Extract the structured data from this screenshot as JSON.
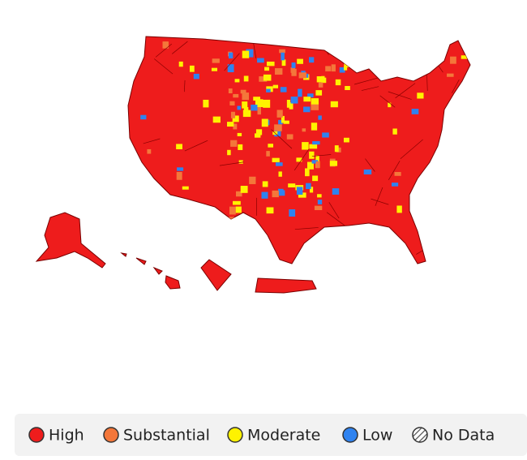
{
  "legend": {
    "items": [
      {
        "label": "High",
        "color": "#ee1c1c"
      },
      {
        "label": "Substantial",
        "color": "#f4773a"
      },
      {
        "label": "Moderate",
        "color": "#fff200"
      },
      {
        "label": "Low",
        "color": "#2f83f0"
      },
      {
        "label": "No Data",
        "color": "#555555",
        "pattern": "hatch"
      }
    ]
  }
}
